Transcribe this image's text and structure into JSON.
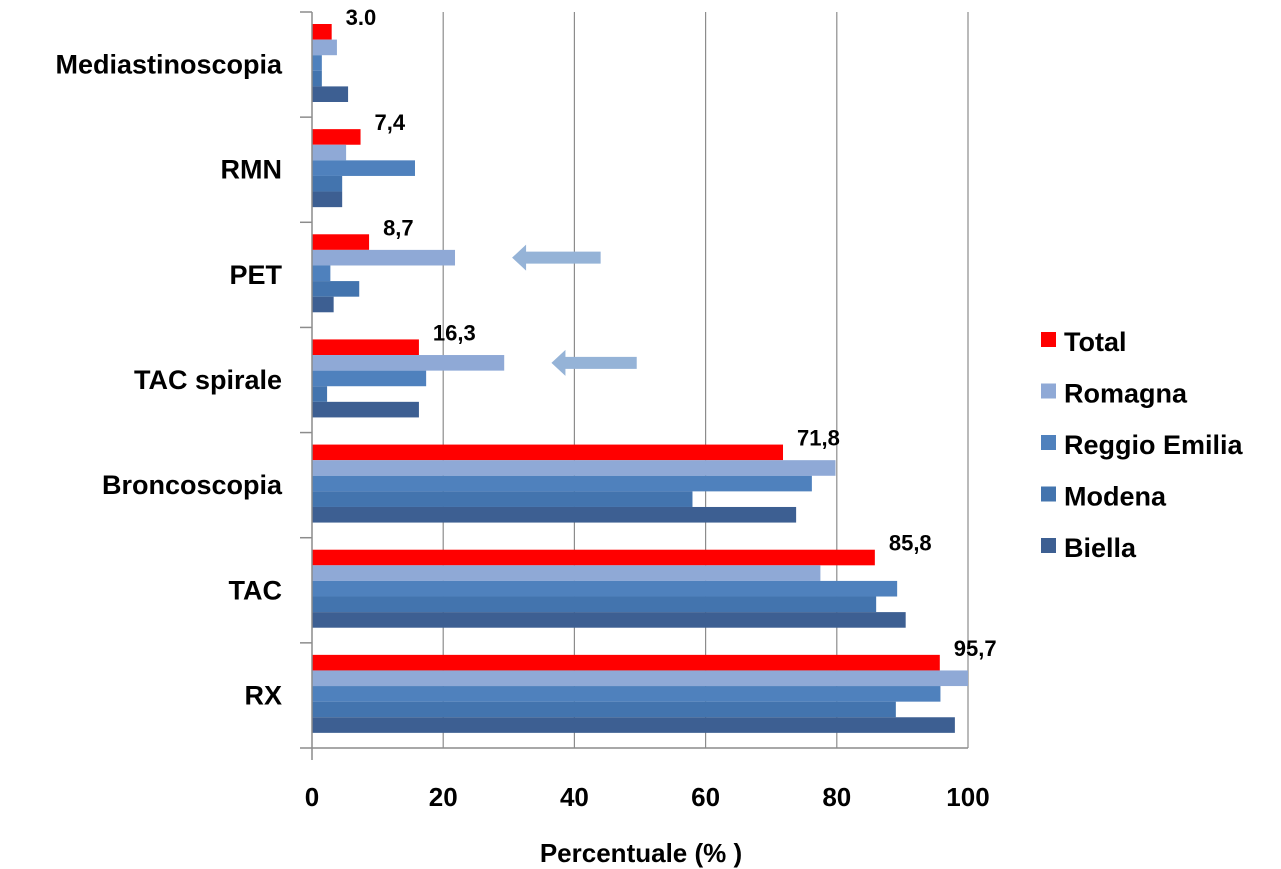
{
  "chart_data": {
    "type": "bar",
    "orientation": "horizontal",
    "categories": [
      "Mediastinoscopia",
      "RMN",
      "PET",
      "TAC spirale",
      "Broncoscopia",
      "TAC",
      "RX"
    ],
    "series": [
      {
        "name": "Total",
        "color": "#ff0000",
        "values": [
          3.0,
          7.4,
          8.7,
          16.3,
          71.8,
          85.8,
          95.7
        ]
      },
      {
        "name": "Romagna",
        "color": "#8fa9d6",
        "values": [
          3.8,
          5.2,
          21.8,
          29.3,
          79.8,
          77.5,
          100
        ]
      },
      {
        "name": "Reggio Emilia",
        "color": "#4f81bd",
        "values": [
          1.5,
          15.7,
          2.8,
          17.4,
          76.2,
          89.2,
          95.8
        ]
      },
      {
        "name": "Modena",
        "color": "#4374ae",
        "values": [
          1.5,
          4.6,
          7.2,
          2.3,
          58.0,
          86.0,
          89.0
        ]
      },
      {
        "name": "Biella",
        "color": "#3d5f92",
        "values": [
          5.5,
          4.6,
          3.3,
          16.3,
          73.8,
          90.5,
          98.0
        ]
      }
    ],
    "data_labels": [
      "3.0",
      "7,4",
      "8,7",
      "16,3",
      "71,8",
      "85,8",
      "95,7"
    ],
    "xlabel": "Percentuale (% )",
    "xlim": [
      0,
      100
    ],
    "xticks": [
      "0",
      "20",
      "40",
      "60",
      "80",
      "100"
    ],
    "grid": "vertical",
    "legend_position": "right",
    "arrows": [
      {
        "category": "PET",
        "from_value": 44,
        "to_value": 30.5
      },
      {
        "category": "TAC spirale",
        "from_value": 49.5,
        "to_value": 36.5
      }
    ],
    "arrow_color": "#95b3d7"
  }
}
